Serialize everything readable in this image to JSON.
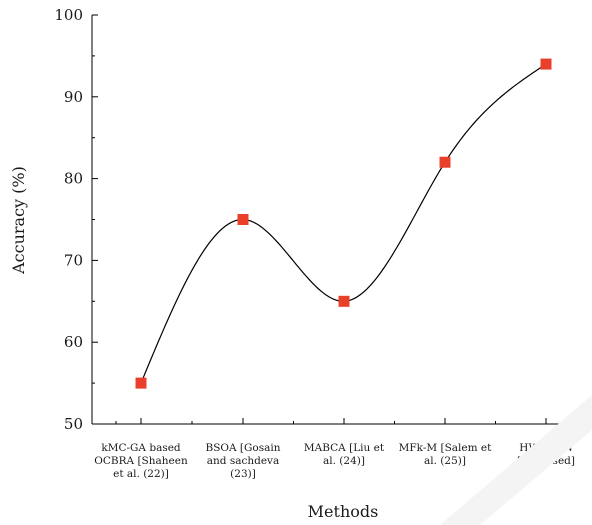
{
  "chart_data": {
    "type": "line",
    "smooth": true,
    "xlabel": "Methods",
    "ylabel": "Accuracy (%)",
    "ylim": [
      50,
      100
    ],
    "yticks": [
      50,
      60,
      70,
      80,
      90,
      100
    ],
    "categories": [
      [
        "kMC-GA based",
        "OCBRA [Shaheen",
        "et al. (22)]"
      ],
      [
        "BSOA [Gosain",
        "and sachdeva",
        "(23)]"
      ],
      [
        "MABCA [Liu et",
        "al. (24)]"
      ],
      [
        "MFk-M [Salem et",
        "al. (25)]"
      ],
      [
        "HWPCNN",
        "[Proposed]"
      ]
    ],
    "values": [
      55,
      75,
      65,
      82,
      94
    ],
    "grid": false,
    "legend": "none",
    "line_color": "#000000",
    "marker_color": "#e8402a",
    "marker": "square"
  }
}
